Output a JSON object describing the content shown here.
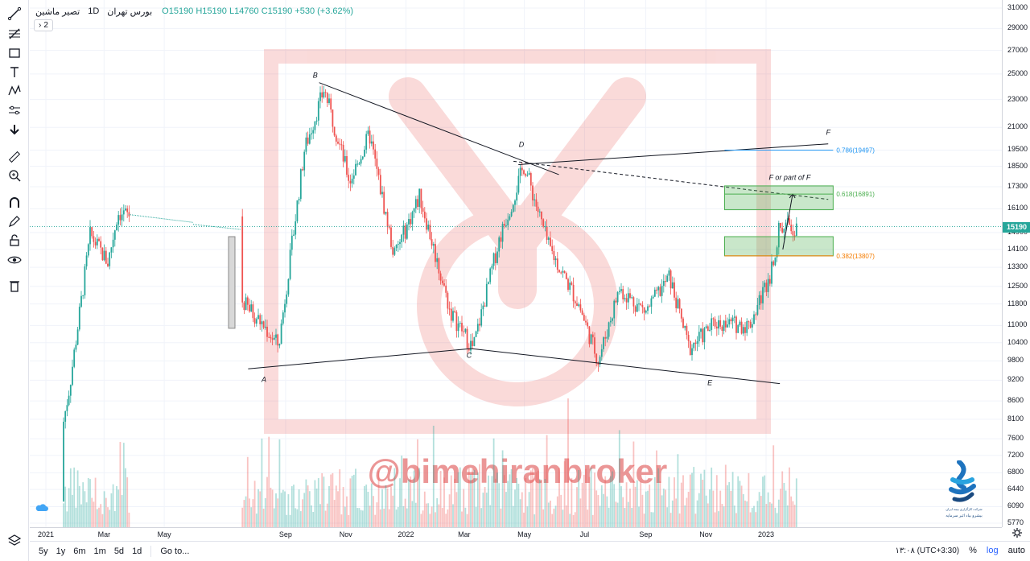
{
  "header": {
    "symbol": "تصیر ماشین",
    "timeframe": "1D",
    "exchange": "بورس تهران",
    "ohlc_text": "O15190 H15190 L14760 C15190 +530 (+3.62%)",
    "indicators_count": "2"
  },
  "toolbar": {
    "icons": [
      "trend-line-icon",
      "fib-icon",
      "rectangle-icon",
      "text-icon",
      "pattern-icon",
      "measure-icon",
      "arrow-down-icon",
      "ruler-icon",
      "zoom-in-icon",
      "magnet-icon",
      "pencil-lock-icon",
      "lock-icon",
      "eye-icon",
      "trash-icon",
      "layers-icon"
    ]
  },
  "price_axis": {
    "ticks": [
      "31000",
      "29000",
      "27000",
      "25000",
      "23000",
      "21000",
      "19500",
      "18500",
      "17300",
      "16100",
      "14900",
      "14100",
      "13300",
      "12500",
      "11800",
      "11000",
      "10400",
      "9800",
      "9200",
      "8600",
      "8100",
      "7600",
      "7200",
      "6800",
      "6440",
      "6090",
      "5770"
    ],
    "last_price": "15190"
  },
  "time_axis": {
    "ticks": [
      "2021",
      "Mar",
      "May",
      "Sep",
      "Nov",
      "2022",
      "Mar",
      "May",
      "Jul",
      "Sep",
      "Nov",
      "2023"
    ]
  },
  "bottom_bar": {
    "ranges": [
      "5y",
      "1y",
      "6m",
      "1m",
      "5d",
      "1d"
    ],
    "goto": "Go to...",
    "timezone": "۱۳:۰۸ (UTC+3:30)",
    "percent": "%",
    "log": "log",
    "auto": "auto"
  },
  "watermark": "@bimehiranbroker",
  "logo": {
    "line1": "شرکت کارگزاری بیمه ایران",
    "line2": "بیشرو بیاد اثیر سرمایه"
  },
  "annotations": {
    "labels": [
      "B",
      "A",
      "C",
      "D",
      "E",
      "F",
      "F or part of F"
    ],
    "fib_levels": [
      {
        "label": "0.786(19497)",
        "color": "#2196f3"
      },
      {
        "label": "0.618(16891)",
        "color": "#4caf50"
      },
      {
        "label": "0.382(13807)",
        "color": "#f57c00"
      }
    ]
  },
  "chart_data": {
    "type": "candlestick",
    "title": "تصیر ماشین · 1D · بورس تهران",
    "last_close": 15190,
    "ylim": [
      5770,
      31000
    ],
    "log_scale": true,
    "x_ticks": [
      "2021",
      "Mar",
      "May",
      "Sep",
      "Nov",
      "2022",
      "Mar",
      "May",
      "Jul",
      "Sep",
      "Nov",
      "2023"
    ],
    "key_points": [
      {
        "label": "A",
        "date": "2021-08",
        "price": 9600
      },
      {
        "label": "B",
        "date": "2021-10",
        "price": 23800
      },
      {
        "label": "C",
        "date": "2022-03",
        "price": 10200
      },
      {
        "label": "D",
        "date": "2022-05",
        "price": 18600
      },
      {
        "label": "E",
        "date": "2022-07",
        "price": 9700
      }
    ],
    "close_path": [
      {
        "x": "2021-01-05",
        "y": 6200
      },
      {
        "x": "2021-01-25",
        "y": 9000
      },
      {
        "x": "2021-02-15",
        "y": 14800
      },
      {
        "x": "2021-03-05",
        "y": 13500
      },
      {
        "x": "2021-03-15",
        "y": 15900
      },
      {
        "x": "2021-05-10",
        "y": 15200
      },
      {
        "x": "2021-08-05",
        "y": 11200
      },
      {
        "x": "2021-08-25",
        "y": 10300
      },
      {
        "x": "2021-09-20",
        "y": 19500
      },
      {
        "x": "2021-10-10",
        "y": 23800
      },
      {
        "x": "2021-11-05",
        "y": 17600
      },
      {
        "x": "2021-11-25",
        "y": 20500
      },
      {
        "x": "2021-12-20",
        "y": 13800
      },
      {
        "x": "2022-01-15",
        "y": 16800
      },
      {
        "x": "2022-02-15",
        "y": 11500
      },
      {
        "x": "2022-03-10",
        "y": 10200
      },
      {
        "x": "2022-04-05",
        "y": 14500
      },
      {
        "x": "2022-05-01",
        "y": 18600
      },
      {
        "x": "2022-05-25",
        "y": 14300
      },
      {
        "x": "2022-06-25",
        "y": 11800
      },
      {
        "x": "2022-07-15",
        "y": 9800
      },
      {
        "x": "2022-08-05",
        "y": 12400
      },
      {
        "x": "2022-09-01",
        "y": 11500
      },
      {
        "x": "2022-09-25",
        "y": 12900
      },
      {
        "x": "2022-10-15",
        "y": 10200
      },
      {
        "x": "2022-11-10",
        "y": 11100
      },
      {
        "x": "2022-12-15",
        "y": 11000
      },
      {
        "x": "2023-01-05",
        "y": 13000
      },
      {
        "x": "2023-01-15",
        "y": 15190
      }
    ],
    "grid": true,
    "legend": "top-left"
  }
}
